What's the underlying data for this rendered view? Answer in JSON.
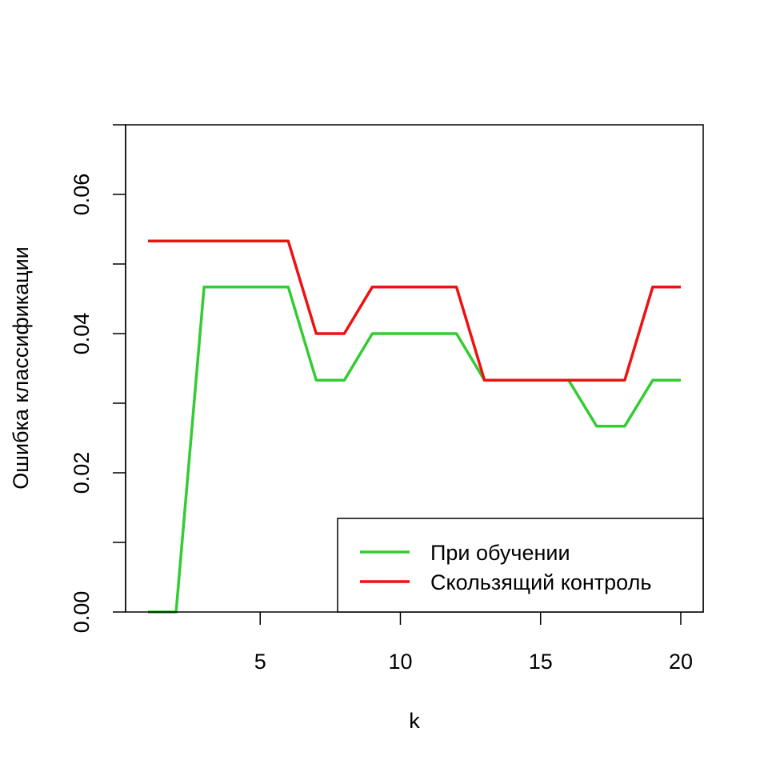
{
  "chart_data": {
    "type": "line",
    "xlabel": "k",
    "ylabel": "Ошибка классификации",
    "xlim": [
      0.2,
      20.8
    ],
    "ylim": [
      0,
      0.07
    ],
    "x_ticks": [
      5,
      10,
      15,
      20
    ],
    "x_tick_labels": [
      "5",
      "10",
      "15",
      "20"
    ],
    "y_ticks": [
      0,
      0.01,
      0.02,
      0.03,
      0.04,
      0.05,
      0.06,
      0.07
    ],
    "y_tick_labels": [
      "0.00",
      "",
      "0.02",
      "",
      "0.04",
      "",
      "0.06",
      ""
    ],
    "grid": false,
    "legend_position": "bottom-right",
    "x": [
      1,
      2,
      3,
      4,
      5,
      6,
      7,
      8,
      9,
      10,
      11,
      12,
      13,
      14,
      15,
      16,
      17,
      18,
      19,
      20
    ],
    "series": [
      {
        "name": "При обучении",
        "color": "#33CC33",
        "values": [
          0.0,
          0.0,
          0.0467,
          0.0467,
          0.0467,
          0.0467,
          0.0333,
          0.0333,
          0.04,
          0.04,
          0.04,
          0.04,
          0.0333,
          0.0333,
          0.0333,
          0.0333,
          0.0267,
          0.0267,
          0.0333,
          0.0333
        ]
      },
      {
        "name": "Скользящий контроль",
        "color": "#EE1111",
        "values": [
          0.0533,
          0.0533,
          0.0533,
          0.0533,
          0.0533,
          0.0533,
          0.04,
          0.04,
          0.0467,
          0.0467,
          0.0467,
          0.0467,
          0.0333,
          0.0333,
          0.0333,
          0.0333,
          0.0333,
          0.0333,
          0.0467,
          0.0467
        ]
      }
    ]
  }
}
